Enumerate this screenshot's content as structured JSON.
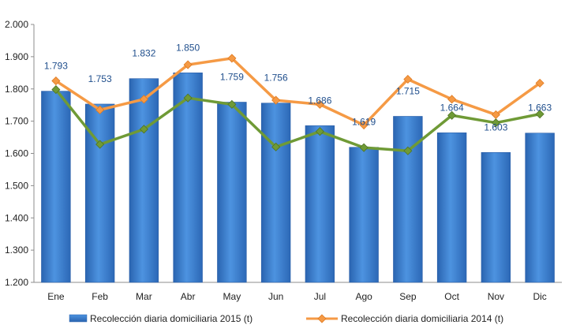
{
  "chart_data": {
    "type": "bar",
    "categories": [
      "Ene",
      "Feb",
      "Mar",
      "Abr",
      "May",
      "Jun",
      "Jul",
      "Ago",
      "Sep",
      "Oct",
      "Nov",
      "Dic"
    ],
    "ylim": [
      1200,
      2000
    ],
    "yticks": [
      1200,
      1300,
      1400,
      1500,
      1600,
      1700,
      1800,
      1900,
      2000
    ],
    "ytick_labels": [
      "1.200",
      "1.300",
      "1.400",
      "1.500",
      "1.600",
      "1.700",
      "1.800",
      "1.900",
      "2.000"
    ],
    "grid": false,
    "legend_position": "bottom",
    "series": [
      {
        "name": "Recolección diaria domiciliaria 2015 (t)",
        "type": "bar",
        "color": "#3a7fd0",
        "values": [
          1793,
          1753,
          1832,
          1850,
          1759,
          1756,
          1686,
          1619,
          1715,
          1664,
          1603,
          1663
        ],
        "labels": [
          "1.793",
          "1.753",
          "1.832",
          "1.850",
          "1.759",
          "1.756",
          "1.686",
          "1.619",
          "1.715",
          "1.664",
          "1.603",
          "1.663"
        ]
      },
      {
        "name": "Recolección diaria domiciliaria 2014 (t)",
        "type": "line",
        "color": "#f59a45",
        "marker": "diamond",
        "values": [
          1825,
          1735,
          1768,
          1875,
          1895,
          1765,
          1752,
          1688,
          1830,
          1768,
          1720,
          1818
        ]
      },
      {
        "name": "",
        "type": "line",
        "color": "#6f9a36",
        "marker": "diamond",
        "values": [
          1798,
          1628,
          1675,
          1772,
          1752,
          1620,
          1668,
          1618,
          1608,
          1718,
          1695,
          1722
        ]
      }
    ]
  }
}
